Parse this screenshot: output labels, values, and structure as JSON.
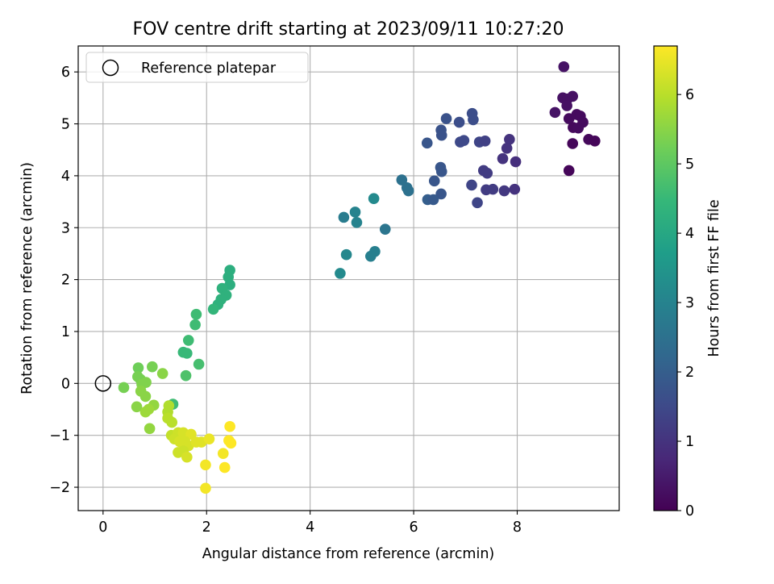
{
  "chart_data": {
    "type": "scatter",
    "title": "FOV centre drift starting at 2023/09/11 10:27:20",
    "xlabel": "Angular distance from reference (arcmin)",
    "ylabel": "Rotation from reference (arcmin)",
    "xlim": [
      -0.48,
      9.97
    ],
    "ylim": [
      -2.45,
      6.5
    ],
    "xticks": [
      0,
      2,
      4,
      6,
      8
    ],
    "yticks": [
      -2,
      -1,
      0,
      1,
      2,
      3,
      4,
      5,
      6
    ],
    "grid": true,
    "legend": {
      "placement": "top-left",
      "entries": [
        "Reference platepar"
      ]
    },
    "reference_point": {
      "x": 0,
      "y": 0,
      "label": "Reference platepar"
    },
    "colorbar": {
      "label": "Hours from first FF file",
      "colormap": "viridis",
      "range": [
        0,
        6.7
      ],
      "ticks": [
        0,
        1,
        2,
        3,
        4,
        5,
        6
      ]
    },
    "colormap_stops": [
      "#440154",
      "#482878",
      "#3e4989",
      "#31688e",
      "#26828e",
      "#1f9e89",
      "#35b779",
      "#6ece58",
      "#b5de2b",
      "#fde725"
    ],
    "points": [
      {
        "x": 8.9,
        "y": 6.1,
        "t": 0.35
      },
      {
        "x": 8.88,
        "y": 5.5,
        "t": 0.3
      },
      {
        "x": 8.97,
        "y": 5.48,
        "t": 0.3
      },
      {
        "x": 9.07,
        "y": 5.53,
        "t": 0.3
      },
      {
        "x": 8.96,
        "y": 5.35,
        "t": 0.3
      },
      {
        "x": 8.73,
        "y": 5.22,
        "t": 0.35
      },
      {
        "x": 9.0,
        "y": 5.1,
        "t": 0.2
      },
      {
        "x": 9.15,
        "y": 5.18,
        "t": 0.2
      },
      {
        "x": 9.22,
        "y": 5.15,
        "t": 0.2
      },
      {
        "x": 9.27,
        "y": 5.03,
        "t": 0.2
      },
      {
        "x": 9.08,
        "y": 4.93,
        "t": 0.15
      },
      {
        "x": 9.18,
        "y": 4.92,
        "t": 0.2
      },
      {
        "x": 9.38,
        "y": 4.7,
        "t": 0.15
      },
      {
        "x": 9.5,
        "y": 4.67,
        "t": 0.1
      },
      {
        "x": 9.07,
        "y": 4.62,
        "t": 0.1
      },
      {
        "x": 9.0,
        "y": 4.1,
        "t": 0.1
      },
      {
        "x": 7.13,
        "y": 5.2,
        "t": 1.6
      },
      {
        "x": 7.15,
        "y": 5.08,
        "t": 1.6
      },
      {
        "x": 6.63,
        "y": 5.1,
        "t": 1.7
      },
      {
        "x": 6.88,
        "y": 5.03,
        "t": 1.6
      },
      {
        "x": 6.53,
        "y": 4.88,
        "t": 1.7
      },
      {
        "x": 6.54,
        "y": 4.78,
        "t": 1.7
      },
      {
        "x": 6.26,
        "y": 4.63,
        "t": 1.8
      },
      {
        "x": 6.9,
        "y": 4.65,
        "t": 1.5
      },
      {
        "x": 6.97,
        "y": 4.68,
        "t": 1.5
      },
      {
        "x": 7.27,
        "y": 4.65,
        "t": 1.4
      },
      {
        "x": 7.38,
        "y": 4.67,
        "t": 1.3
      },
      {
        "x": 7.85,
        "y": 4.7,
        "t": 1.0
      },
      {
        "x": 7.8,
        "y": 4.53,
        "t": 1.0
      },
      {
        "x": 7.72,
        "y": 4.33,
        "t": 1.0
      },
      {
        "x": 7.97,
        "y": 4.27,
        "t": 0.9
      },
      {
        "x": 7.35,
        "y": 4.1,
        "t": 1.2
      },
      {
        "x": 7.42,
        "y": 4.05,
        "t": 1.2
      },
      {
        "x": 6.52,
        "y": 4.16,
        "t": 1.8
      },
      {
        "x": 6.54,
        "y": 4.08,
        "t": 1.8
      },
      {
        "x": 6.4,
        "y": 3.9,
        "t": 1.8
      },
      {
        "x": 7.12,
        "y": 3.82,
        "t": 1.4
      },
      {
        "x": 7.4,
        "y": 3.73,
        "t": 1.2
      },
      {
        "x": 7.53,
        "y": 3.74,
        "t": 1.2
      },
      {
        "x": 7.75,
        "y": 3.71,
        "t": 1.1
      },
      {
        "x": 7.95,
        "y": 3.74,
        "t": 1.0
      },
      {
        "x": 6.53,
        "y": 3.65,
        "t": 1.8
      },
      {
        "x": 6.27,
        "y": 3.54,
        "t": 2.0
      },
      {
        "x": 6.38,
        "y": 3.54,
        "t": 1.9
      },
      {
        "x": 7.23,
        "y": 3.48,
        "t": 1.4
      },
      {
        "x": 5.77,
        "y": 3.92,
        "t": 2.5
      },
      {
        "x": 5.87,
        "y": 3.77,
        "t": 2.5
      },
      {
        "x": 5.9,
        "y": 3.71,
        "t": 2.5
      },
      {
        "x": 5.23,
        "y": 3.56,
        "t": 3.2
      },
      {
        "x": 4.87,
        "y": 3.3,
        "t": 3.0
      },
      {
        "x": 4.65,
        "y": 3.2,
        "t": 2.8
      },
      {
        "x": 4.9,
        "y": 3.1,
        "t": 3.0
      },
      {
        "x": 5.45,
        "y": 2.97,
        "t": 2.6
      },
      {
        "x": 5.25,
        "y": 2.54,
        "t": 2.9
      },
      {
        "x": 5.17,
        "y": 2.45,
        "t": 2.9
      },
      {
        "x": 4.7,
        "y": 2.48,
        "t": 3.1
      },
      {
        "x": 4.58,
        "y": 2.12,
        "t": 3.2
      },
      {
        "x": 2.45,
        "y": 2.18,
        "t": 4.2
      },
      {
        "x": 2.42,
        "y": 2.05,
        "t": 4.2
      },
      {
        "x": 2.45,
        "y": 1.9,
        "t": 4.2
      },
      {
        "x": 2.3,
        "y": 1.83,
        "t": 4.3
      },
      {
        "x": 2.38,
        "y": 1.7,
        "t": 4.3
      },
      {
        "x": 2.28,
        "y": 1.62,
        "t": 4.3
      },
      {
        "x": 2.22,
        "y": 1.52,
        "t": 4.3
      },
      {
        "x": 2.13,
        "y": 1.43,
        "t": 4.4
      },
      {
        "x": 1.8,
        "y": 1.33,
        "t": 4.6
      },
      {
        "x": 1.78,
        "y": 1.13,
        "t": 4.6
      },
      {
        "x": 1.65,
        "y": 0.83,
        "t": 4.6
      },
      {
        "x": 1.55,
        "y": 0.6,
        "t": 4.5
      },
      {
        "x": 1.62,
        "y": 0.58,
        "t": 4.5
      },
      {
        "x": 1.85,
        "y": 0.37,
        "t": 4.7
      },
      {
        "x": 1.6,
        "y": 0.15,
        "t": 4.8
      },
      {
        "x": 1.35,
        "y": -0.4,
        "t": 4.6
      },
      {
        "x": 0.68,
        "y": 0.3,
        "t": 5.2
      },
      {
        "x": 0.95,
        "y": 0.32,
        "t": 5.3
      },
      {
        "x": 1.15,
        "y": 0.19,
        "t": 5.5
      },
      {
        "x": 0.67,
        "y": 0.13,
        "t": 5.3
      },
      {
        "x": 0.72,
        "y": 0.08,
        "t": 5.3
      },
      {
        "x": 0.83,
        "y": 0.02,
        "t": 5.4
      },
      {
        "x": 0.75,
        "y": -0.02,
        "t": 5.4
      },
      {
        "x": 0.4,
        "y": -0.08,
        "t": 5.3
      },
      {
        "x": 0.73,
        "y": -0.15,
        "t": 5.5
      },
      {
        "x": 0.82,
        "y": -0.25,
        "t": 5.5
      },
      {
        "x": 0.98,
        "y": -0.42,
        "t": 5.6
      },
      {
        "x": 0.65,
        "y": -0.45,
        "t": 5.5
      },
      {
        "x": 0.82,
        "y": -0.55,
        "t": 5.7
      },
      {
        "x": 0.88,
        "y": -0.5,
        "t": 5.7
      },
      {
        "x": 0.9,
        "y": -0.87,
        "t": 5.6
      },
      {
        "x": 1.27,
        "y": -0.43,
        "t": 5.9
      },
      {
        "x": 1.25,
        "y": -0.55,
        "t": 5.9
      },
      {
        "x": 1.25,
        "y": -0.67,
        "t": 6.0
      },
      {
        "x": 1.33,
        "y": -0.75,
        "t": 6.0
      },
      {
        "x": 1.32,
        "y": -1.0,
        "t": 6.1
      },
      {
        "x": 1.45,
        "y": -0.95,
        "t": 6.2
      },
      {
        "x": 1.38,
        "y": -1.07,
        "t": 6.2
      },
      {
        "x": 1.55,
        "y": -0.95,
        "t": 6.3
      },
      {
        "x": 1.62,
        "y": -1.0,
        "t": 6.3
      },
      {
        "x": 1.7,
        "y": -0.98,
        "t": 6.4
      },
      {
        "x": 1.48,
        "y": -1.12,
        "t": 6.3
      },
      {
        "x": 1.58,
        "y": -1.12,
        "t": 6.3
      },
      {
        "x": 1.65,
        "y": -1.2,
        "t": 6.3
      },
      {
        "x": 1.8,
        "y": -1.13,
        "t": 6.4
      },
      {
        "x": 1.9,
        "y": -1.13,
        "t": 6.4
      },
      {
        "x": 1.45,
        "y": -1.33,
        "t": 6.2
      },
      {
        "x": 1.55,
        "y": -1.3,
        "t": 6.2
      },
      {
        "x": 1.62,
        "y": -1.42,
        "t": 6.3
      },
      {
        "x": 2.05,
        "y": -1.07,
        "t": 6.5
      },
      {
        "x": 2.45,
        "y": -0.83,
        "t": 6.7
      },
      {
        "x": 2.43,
        "y": -1.1,
        "t": 6.7
      },
      {
        "x": 2.47,
        "y": -1.15,
        "t": 6.7
      },
      {
        "x": 2.32,
        "y": -1.35,
        "t": 6.6
      },
      {
        "x": 1.98,
        "y": -1.57,
        "t": 6.6
      },
      {
        "x": 2.35,
        "y": -1.62,
        "t": 6.7
      },
      {
        "x": 1.98,
        "y": -2.02,
        "t": 6.6
      }
    ]
  }
}
